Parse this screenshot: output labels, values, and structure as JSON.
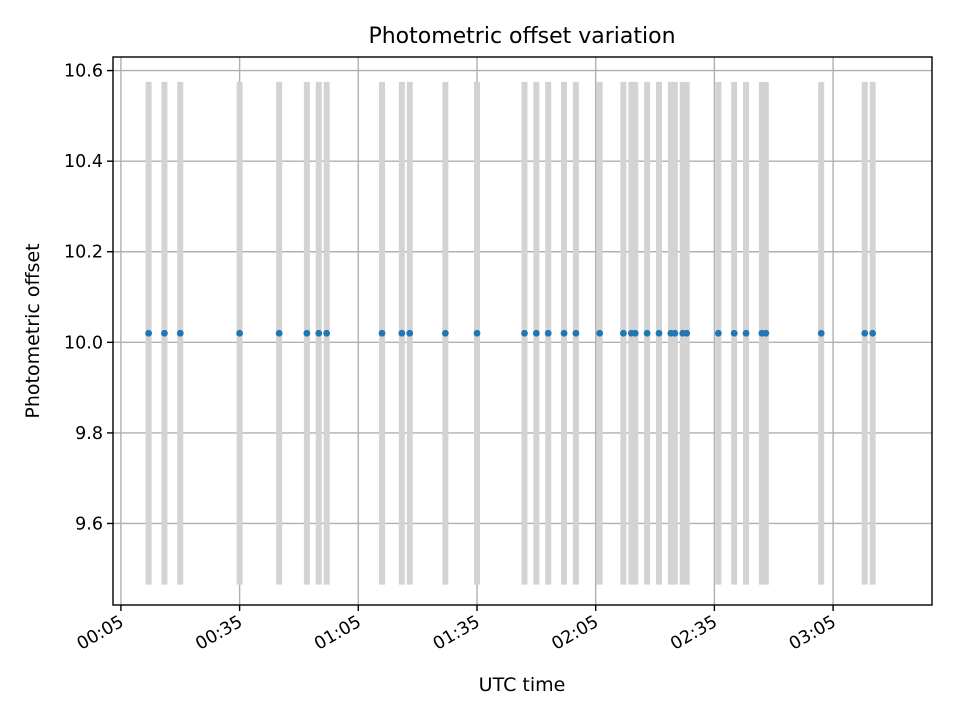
{
  "chart_data": {
    "type": "scatter",
    "title": "Photometric offset variation",
    "xlabel": "UTC time",
    "ylabel": "Photometric offset",
    "x_tick_labels": [
      "00:05",
      "00:35",
      "01:05",
      "01:35",
      "02:05",
      "02:35",
      "03:05"
    ],
    "y_tick_labels": [
      "9.6",
      "9.8",
      "10.0",
      "10.2",
      "10.4",
      "10.6"
    ],
    "xlim": [
      "00:03",
      "03:30"
    ],
    "ylim": [
      9.42,
      10.63
    ],
    "grid": true,
    "marker_color": "#1f77b4",
    "errorbar_color": "#d3d3d3",
    "series": [
      {
        "x": [
          "00:12",
          "00:16",
          "00:20",
          "00:35",
          "00:45",
          "00:52",
          "00:55",
          "00:57",
          "01:11",
          "01:16",
          "01:18",
          "01:27",
          "01:35",
          "01:47",
          "01:50",
          "01:53",
          "01:57",
          "02:00",
          "02:06",
          "02:12",
          "02:14",
          "02:15",
          "02:18",
          "02:21",
          "02:24",
          "02:25",
          "02:27",
          "02:28",
          "02:36",
          "02:40",
          "02:43",
          "02:47",
          "02:48",
          "03:02",
          "03:13",
          "03:15"
        ],
        "y": [
          10.02,
          10.02,
          10.02,
          10.02,
          10.02,
          10.02,
          10.02,
          10.02,
          10.02,
          10.02,
          10.02,
          10.02,
          10.02,
          10.02,
          10.02,
          10.02,
          10.02,
          10.02,
          10.02,
          10.02,
          10.02,
          10.02,
          10.02,
          10.02,
          10.02,
          10.02,
          10.02,
          10.02,
          10.02,
          10.02,
          10.02,
          10.02,
          10.02,
          10.02,
          10.02,
          10.02
        ],
        "y_error": 0.555
      }
    ]
  }
}
